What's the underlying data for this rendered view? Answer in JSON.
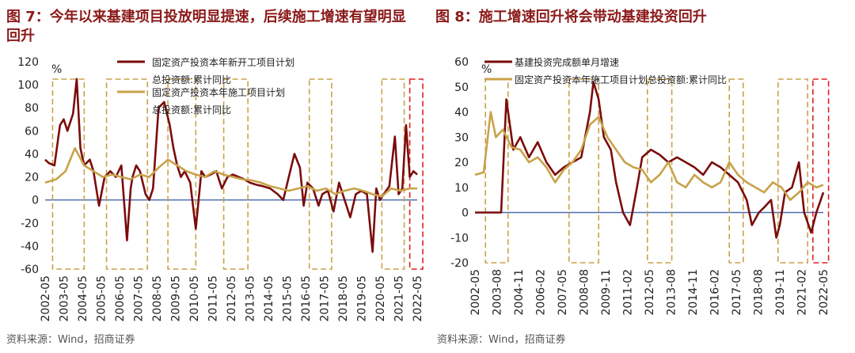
{
  "figure1": {
    "title": "图 7：今年以来基建项目投放明显提速，后续施工增速有望明显回升",
    "source": "资料来源：Wind，招商证券"
  },
  "figure2": {
    "title": "图 8：施工增速回升将会带动基建投资回升",
    "source": "资料来源：Wind，招商证券"
  },
  "colors": {
    "dark_red": "#7b0c0c",
    "gold": "#c8a24a",
    "box_gold": "#c8a24a",
    "box_red": "#e02020",
    "zero_line": "#4a6fb0"
  },
  "chart_data": [
    {
      "type": "line",
      "unit": "%",
      "ylim": [
        -60,
        120
      ],
      "yticks": [
        120,
        100,
        80,
        60,
        40,
        20,
        0,
        -20,
        -40,
        -60
      ],
      "categories": [
        "2002-05",
        "2003-05",
        "2004-05",
        "2005-05",
        "2006-05",
        "2007-05",
        "2008-05",
        "2009-05",
        "2010-05",
        "2011-05",
        "2012-05",
        "2013-05",
        "2014-05",
        "2015-05",
        "2016-05",
        "2017-05",
        "2018-05",
        "2019-05",
        "2020-05",
        "2021-05",
        "2022-05"
      ],
      "legend_position": "top-center",
      "series": [
        {
          "name": "固定资产投资本年新开工项目计划总投资额:累计同比",
          "color": "#7b0c0c",
          "x": [
            2002.4,
            2002.6,
            2002.9,
            2003.2,
            2003.4,
            2003.6,
            2003.9,
            2004.1,
            2004.3,
            2004.5,
            2004.8,
            2005.0,
            2005.3,
            2005.6,
            2005.9,
            2006.2,
            2006.5,
            2006.8,
            2007.0,
            2007.1,
            2007.3,
            2007.5,
            2007.8,
            2008.0,
            2008.2,
            2008.5,
            2008.8,
            2009.1,
            2009.3,
            2009.5,
            2009.7,
            2009.9,
            2010.2,
            2010.5,
            2010.8,
            2011.0,
            2011.3,
            2011.6,
            2011.9,
            2012.2,
            2012.5,
            2012.8,
            2013.1,
            2013.4,
            2013.8,
            2014.1,
            2014.5,
            2014.9,
            2015.2,
            2015.5,
            2015.8,
            2016.1,
            2016.3,
            2016.5,
            2016.8,
            2017.1,
            2017.3,
            2017.6,
            2017.9,
            2018.2,
            2018.5,
            2018.8,
            2019.1,
            2019.4,
            2019.7,
            2020.0,
            2020.2,
            2020.4,
            2020.6,
            2020.9,
            2021.2,
            2021.4,
            2021.6,
            2021.8,
            2022.0,
            2022.2,
            2022.4
          ],
          "y": [
            35,
            32,
            30,
            65,
            70,
            60,
            75,
            105,
            45,
            30,
            35,
            25,
            -5,
            20,
            25,
            20,
            30,
            -35,
            10,
            20,
            30,
            25,
            5,
            0,
            10,
            80,
            85,
            65,
            45,
            30,
            20,
            25,
            15,
            -25,
            25,
            20,
            22,
            25,
            10,
            20,
            22,
            20,
            18,
            15,
            13,
            12,
            10,
            5,
            0,
            20,
            40,
            28,
            -5,
            15,
            10,
            -5,
            5,
            8,
            -10,
            15,
            0,
            -15,
            5,
            8,
            5,
            -45,
            10,
            0,
            5,
            12,
            55,
            5,
            10,
            65,
            20,
            25,
            22
          ]
        },
        {
          "name": "固定资产投资本年施工项目计划总投资额:累计同比",
          "color": "#c8a24a",
          "x": [
            2002.4,
            2003.0,
            2003.5,
            2004.0,
            2004.5,
            2005.0,
            2005.5,
            2006.0,
            2006.5,
            2007.0,
            2007.5,
            2008.0,
            2008.5,
            2009.0,
            2009.5,
            2010.0,
            2010.5,
            2011.0,
            2011.5,
            2012.0,
            2012.5,
            2013.0,
            2013.5,
            2014.0,
            2014.5,
            2015.0,
            2015.5,
            2016.0,
            2016.5,
            2017.0,
            2017.5,
            2018.0,
            2018.5,
            2019.0,
            2019.5,
            2020.0,
            2020.5,
            2021.0,
            2021.5,
            2022.0,
            2022.4
          ],
          "y": [
            15,
            18,
            25,
            45,
            30,
            25,
            20,
            22,
            20,
            18,
            22,
            20,
            28,
            35,
            30,
            25,
            22,
            20,
            25,
            22,
            20,
            18,
            17,
            15,
            12,
            10,
            8,
            10,
            12,
            8,
            10,
            5,
            8,
            10,
            8,
            5,
            3,
            10,
            8,
            10,
            10
          ]
        }
      ]
    },
    {
      "type": "line",
      "unit": "%",
      "ylim": [
        -20,
        60
      ],
      "yticks": [
        60,
        50,
        40,
        30,
        20,
        10,
        0,
        -10,
        -20
      ],
      "categories": [
        "2002-05",
        "2003-08",
        "2004-11",
        "2006-02",
        "2007-05",
        "2008-08",
        "2009-11",
        "2011-02",
        "2012-05",
        "2013-08",
        "2014-11",
        "2016-02",
        "2017-05",
        "2018-08",
        "2019-11",
        "2021-02",
        "2022-05"
      ],
      "legend_position": "top-center",
      "series": [
        {
          "name": "基建投资完成额单月增速",
          "color": "#7b0c0c",
          "x": [
            2002.4,
            2003.0,
            2003.5,
            2003.9,
            2004.2,
            2004.6,
            2005.0,
            2005.5,
            2006.0,
            2006.5,
            2007.0,
            2007.5,
            2008.0,
            2008.5,
            2009.0,
            2009.2,
            2009.5,
            2009.8,
            2010.2,
            2010.5,
            2010.9,
            2011.3,
            2011.7,
            2012.0,
            2012.5,
            2013.0,
            2013.5,
            2014.0,
            2014.5,
            2015.0,
            2015.5,
            2016.0,
            2016.5,
            2017.0,
            2017.5,
            2018.0,
            2018.3,
            2018.7,
            2019.0,
            2019.4,
            2019.7,
            2019.9,
            2020.2,
            2020.6,
            2021.0,
            2021.3,
            2021.7,
            2022.0,
            2022.4
          ],
          "y": [
            0,
            0,
            0,
            0,
            45,
            25,
            30,
            22,
            28,
            20,
            15,
            18,
            20,
            22,
            40,
            52,
            45,
            30,
            25,
            12,
            0,
            -5,
            10,
            22,
            25,
            23,
            20,
            22,
            20,
            18,
            15,
            20,
            18,
            15,
            12,
            5,
            -5,
            0,
            2,
            5,
            -10,
            -5,
            8,
            10,
            20,
            0,
            -8,
            0,
            8
          ]
        },
        {
          "name": "固定资产投资本年施工项目计划总投资额:累计同比",
          "color": "#c8a24a",
          "x": [
            2002.4,
            2002.9,
            2003.3,
            2003.6,
            2004.0,
            2004.5,
            2005.0,
            2005.5,
            2006.0,
            2006.5,
            2007.0,
            2007.5,
            2008.0,
            2008.5,
            2009.0,
            2009.5,
            2010.0,
            2010.5,
            2011.0,
            2011.5,
            2012.0,
            2012.5,
            2013.0,
            2013.5,
            2014.0,
            2014.5,
            2015.0,
            2015.5,
            2016.0,
            2016.5,
            2017.0,
            2017.5,
            2018.0,
            2018.5,
            2019.0,
            2019.5,
            2020.0,
            2020.5,
            2021.0,
            2021.5,
            2022.0,
            2022.4
          ],
          "y": [
            15,
            16,
            40,
            30,
            33,
            26,
            25,
            20,
            22,
            18,
            12,
            17,
            20,
            25,
            35,
            38,
            30,
            25,
            20,
            18,
            17,
            12,
            15,
            20,
            12,
            10,
            15,
            12,
            10,
            12,
            20,
            15,
            12,
            10,
            8,
            12,
            10,
            5,
            8,
            12,
            10,
            11
          ]
        }
      ]
    }
  ]
}
